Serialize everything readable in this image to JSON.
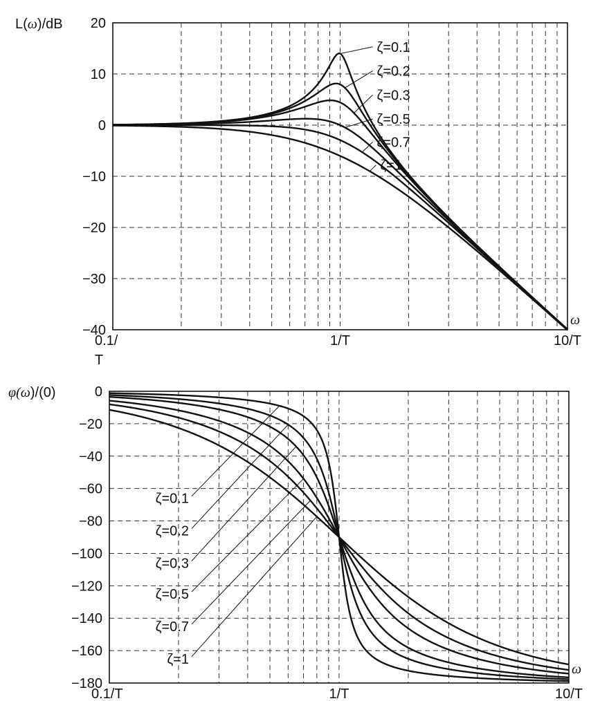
{
  "chart_data": [
    {
      "type": "line",
      "title": "",
      "ylabel": "L(ω)/dB",
      "xlabel": "ω",
      "xscale": "log",
      "xlim": [
        0.1,
        10
      ],
      "ylim": [
        -40,
        20
      ],
      "x_tick_values": [
        0.1,
        1,
        10
      ],
      "x_tick_labels": [
        "0.1/\nT",
        "1/T",
        "10/T"
      ],
      "y_ticks": [
        20,
        10,
        0,
        -10,
        -20,
        -30,
        -40
      ],
      "y_tick_labels": [
        "20",
        "10",
        "0",
        "−10",
        "−20",
        "−30",
        "−40"
      ],
      "grid": true,
      "x_unit": "1/T",
      "series": [
        {
          "name": "ζ=0.1",
          "zeta": 0.1
        },
        {
          "name": "ζ=0.2",
          "zeta": 0.2
        },
        {
          "name": "ζ=0.3",
          "zeta": 0.3
        },
        {
          "name": "ζ=0.5",
          "zeta": 0.5
        },
        {
          "name": "ζ=0.7",
          "zeta": 0.7
        },
        {
          "name": "ζ=1",
          "zeta": 1
        }
      ],
      "annotations": [
        {
          "text": "ζ=0.1",
          "zeta": 0.1,
          "at_omega": 1.0,
          "label_omega": 1.45,
          "label_y": 15.3
        },
        {
          "text": "ζ=0.2",
          "zeta": 0.2,
          "at_omega": 1.05,
          "label_omega": 1.45,
          "label_y": 10.6
        },
        {
          "text": "ζ=0.3",
          "zeta": 0.3,
          "at_omega": 1.15,
          "label_omega": 1.45,
          "label_y": 5.9
        },
        {
          "text": "ζ=0.5",
          "zeta": 0.5,
          "at_omega": 1.05,
          "label_omega": 1.45,
          "label_y": 1.2
        },
        {
          "text": "ζ=0.7",
          "zeta": 0.7,
          "at_omega": 1.25,
          "label_omega": 1.45,
          "label_y": -3.3
        },
        {
          "text": "ζ=1",
          "zeta": 1,
          "at_omega": 1.35,
          "label_omega": 1.5,
          "label_y": -7.8
        }
      ]
    },
    {
      "type": "line",
      "title": "",
      "ylabel": "φ(ω)/(0)",
      "xlabel": "ω",
      "xscale": "log",
      "xlim": [
        0.1,
        10
      ],
      "ylim": [
        -180,
        0
      ],
      "x_tick_values": [
        0.1,
        1,
        10
      ],
      "x_tick_labels": [
        "0.1/T",
        "1/T",
        "10/T"
      ],
      "y_ticks": [
        0,
        -20,
        -40,
        -60,
        -80,
        -100,
        -120,
        -140,
        -160,
        -180
      ],
      "y_tick_labels": [
        "0",
        "−20",
        "−40",
        "−60",
        "−80",
        "−100",
        "−120",
        "−140",
        "−160",
        "−180"
      ],
      "grid": true,
      "x_unit": "1/T",
      "series": [
        {
          "name": "ζ=0.1",
          "zeta": 0.1
        },
        {
          "name": "ζ=0.2",
          "zeta": 0.2
        },
        {
          "name": "ζ=0.3",
          "zeta": 0.3
        },
        {
          "name": "ζ=0.5",
          "zeta": 0.5
        },
        {
          "name": "ζ=0.7",
          "zeta": 0.7
        },
        {
          "name": "ζ=1",
          "zeta": 1
        }
      ],
      "annotations": [
        {
          "text": "ζ=0.1",
          "zeta": 0.1,
          "at_omega": 0.55,
          "label_omega": 0.21,
          "label_y": -63
        },
        {
          "text": "ζ=0.2",
          "zeta": 0.2,
          "at_omega": 0.6,
          "label_omega": 0.21,
          "label_y": -83
        },
        {
          "text": "ζ=0.3",
          "zeta": 0.3,
          "at_omega": 0.65,
          "label_omega": 0.21,
          "label_y": -103
        },
        {
          "text": "ζ=0.5",
          "zeta": 0.5,
          "at_omega": 0.7,
          "label_omega": 0.21,
          "label_y": -122
        },
        {
          "text": "ζ=0.7",
          "zeta": 0.7,
          "at_omega": 0.75,
          "label_omega": 0.21,
          "label_y": -142
        },
        {
          "text": "ζ=1",
          "zeta": 1,
          "at_omega": 0.8,
          "label_omega": 0.21,
          "label_y": -162
        }
      ]
    }
  ]
}
